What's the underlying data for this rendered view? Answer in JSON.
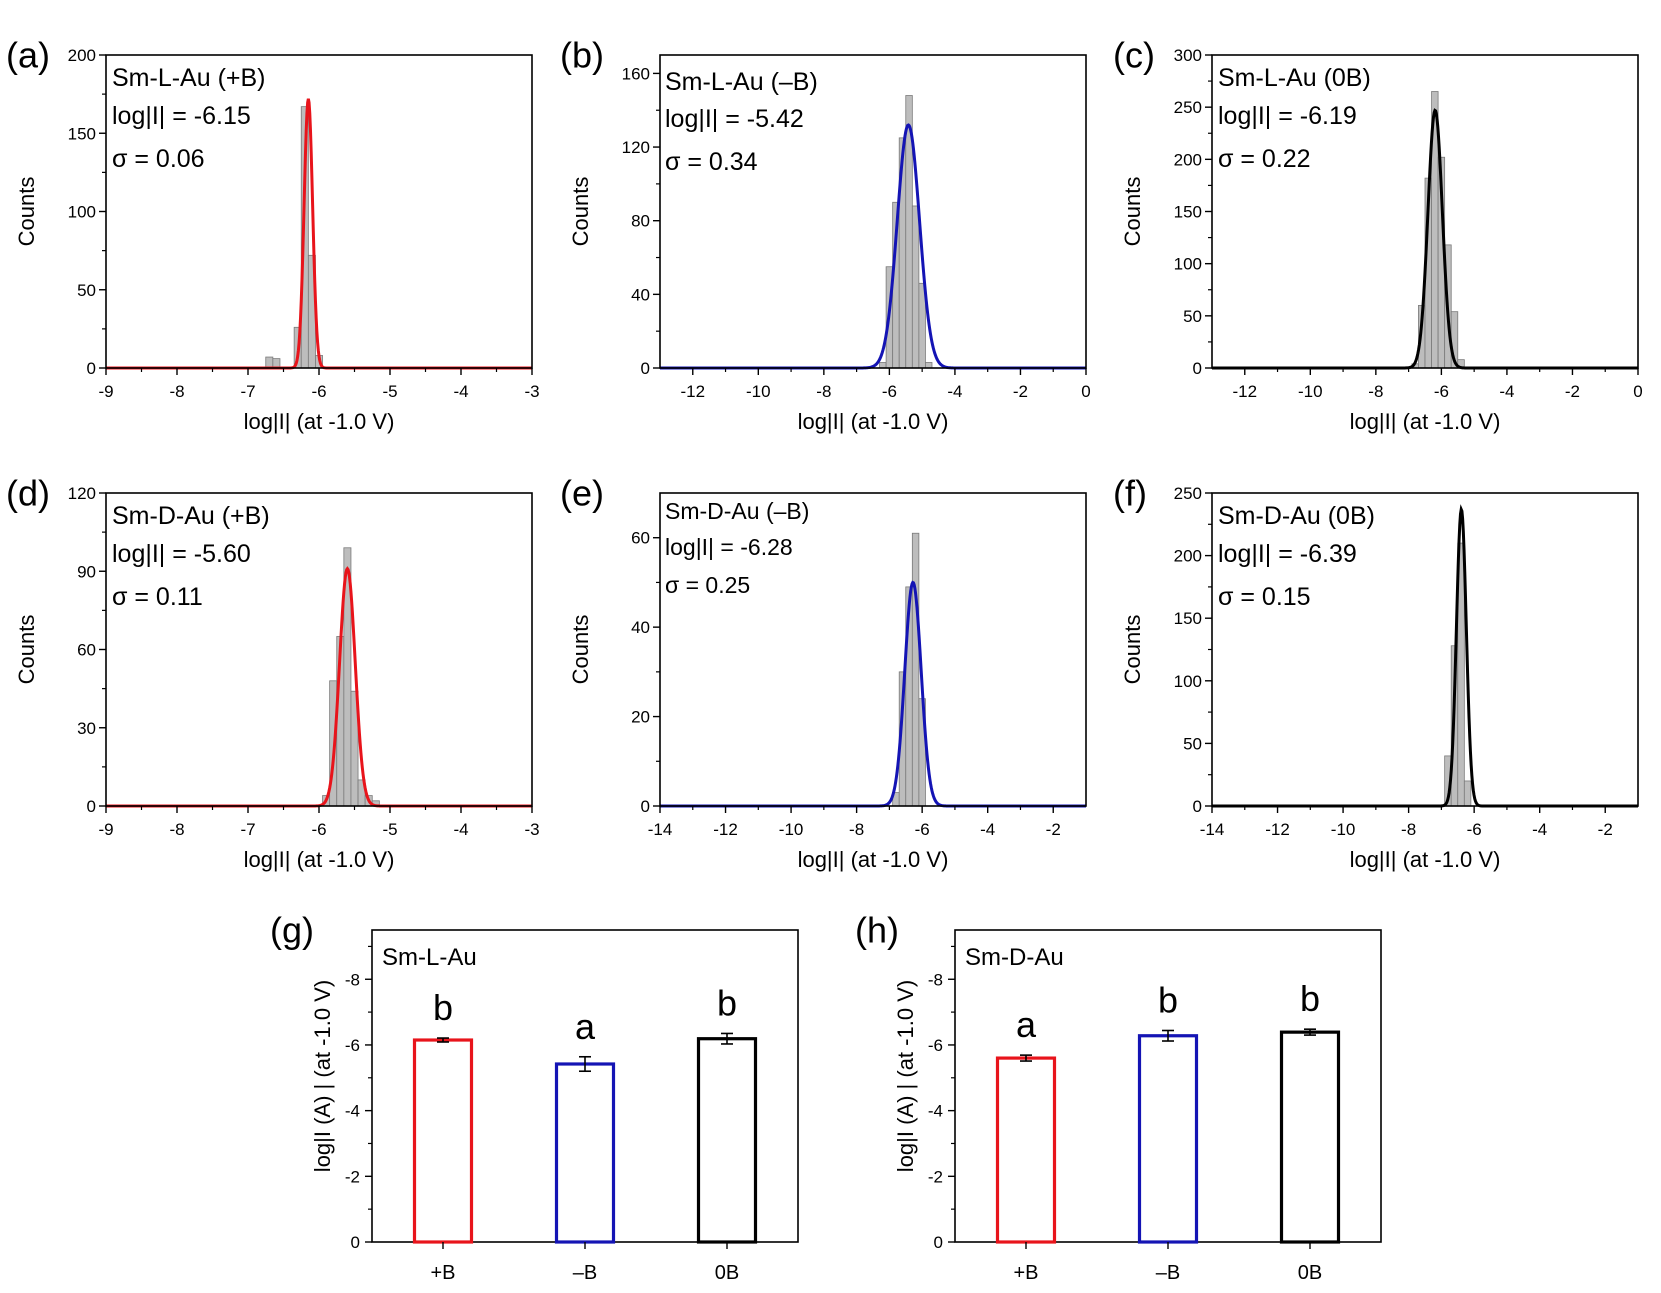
{
  "chart_data": [
    {
      "id": "a",
      "type": "histogram",
      "panel_label": "(a)",
      "xlabel": "log|I| (at -1.0 V)",
      "ylabel": "Counts",
      "xlim": [
        -9,
        -3
      ],
      "ylim": [
        0,
        200
      ],
      "xticks": [
        "-9",
        "-8",
        "-7",
        "-6",
        "-5",
        "-4",
        "-3"
      ],
      "yticks": [
        "0",
        "50",
        "100",
        "150",
        "200"
      ],
      "annotations": [
        "Sm-L-Au (+B)",
        "log|I| = -6.15",
        "σ = 0.06"
      ],
      "fit": {
        "type": "gaussian",
        "mean": -6.15,
        "sigma": 0.06,
        "peak": 172,
        "color": "#e8141b"
      },
      "bin_width": 0.1,
      "bins": [
        {
          "x": -6.7,
          "count": 7
        },
        {
          "x": -6.6,
          "count": 6
        },
        {
          "x": -6.3,
          "count": 26
        },
        {
          "x": -6.2,
          "count": 167
        },
        {
          "x": -6.1,
          "count": 72
        },
        {
          "x": -6.0,
          "count": 8
        }
      ]
    },
    {
      "id": "b",
      "type": "histogram",
      "panel_label": "(b)",
      "xlabel": "log|I| (at -1.0 V)",
      "ylabel": "Counts",
      "xlim": [
        -13,
        0
      ],
      "ylim": [
        0,
        170
      ],
      "xticks": [
        "-12",
        "-10",
        "-8",
        "-6",
        "-4",
        "-2",
        "0"
      ],
      "yticks": [
        "0",
        "40",
        "80",
        "120",
        "160"
      ],
      "annotations": [
        "Sm-L-Au (–B)",
        "log|I| = -5.42",
        "σ = 0.34"
      ],
      "fit": {
        "type": "gaussian",
        "mean": -5.42,
        "sigma": 0.34,
        "peak": 132,
        "color": "#1414b4"
      },
      "bin_width": 0.2,
      "bins": [
        {
          "x": -6.2,
          "count": 3
        },
        {
          "x": -6.0,
          "count": 55
        },
        {
          "x": -5.8,
          "count": 90
        },
        {
          "x": -5.6,
          "count": 125
        },
        {
          "x": -5.4,
          "count": 148
        },
        {
          "x": -5.2,
          "count": 88
        },
        {
          "x": -5.0,
          "count": 46
        },
        {
          "x": -4.8,
          "count": 3
        }
      ]
    },
    {
      "id": "c",
      "type": "histogram",
      "panel_label": "(c)",
      "xlabel": "log|I| (at -1.0 V)",
      "ylabel": "Counts",
      "xlim": [
        -13,
        0
      ],
      "ylim": [
        0,
        300
      ],
      "xticks": [
        "-12",
        "-10",
        "-8",
        "-6",
        "-4",
        "-2",
        "0"
      ],
      "yticks": [
        "0",
        "50",
        "100",
        "150",
        "200",
        "250",
        "300"
      ],
      "annotations": [
        "Sm-L-Au (0B)",
        "log|I| = -6.19",
        "σ = 0.22"
      ],
      "fit": {
        "type": "gaussian",
        "mean": -6.19,
        "sigma": 0.22,
        "peak": 247,
        "color": "#000000"
      },
      "bin_width": 0.2,
      "bins": [
        {
          "x": -6.8,
          "count": 4
        },
        {
          "x": -6.6,
          "count": 60
        },
        {
          "x": -6.4,
          "count": 182
        },
        {
          "x": -6.2,
          "count": 265
        },
        {
          "x": -6.0,
          "count": 202
        },
        {
          "x": -5.8,
          "count": 118
        },
        {
          "x": -5.6,
          "count": 54
        },
        {
          "x": -5.4,
          "count": 8
        }
      ]
    },
    {
      "id": "d",
      "type": "histogram",
      "panel_label": "(d)",
      "xlabel": "log|I| (at -1.0 V)",
      "ylabel": "Counts",
      "xlim": [
        -9,
        -3
      ],
      "ylim": [
        0,
        120
      ],
      "xticks": [
        "-9",
        "-8",
        "-7",
        "-6",
        "-5",
        "-4",
        "-3"
      ],
      "yticks": [
        "0",
        "30",
        "60",
        "90",
        "120"
      ],
      "annotations": [
        "Sm-D-Au (+B)",
        "log|I| = -5.60",
        "σ = 0.11"
      ],
      "fit": {
        "type": "gaussian",
        "mean": -5.6,
        "sigma": 0.11,
        "peak": 91,
        "color": "#e8141b"
      },
      "bin_width": 0.1,
      "bins": [
        {
          "x": -5.9,
          "count": 4
        },
        {
          "x": -5.8,
          "count": 48
        },
        {
          "x": -5.7,
          "count": 65
        },
        {
          "x": -5.6,
          "count": 99
        },
        {
          "x": -5.5,
          "count": 44
        },
        {
          "x": -5.4,
          "count": 10
        },
        {
          "x": -5.3,
          "count": 4
        },
        {
          "x": -5.2,
          "count": 2
        }
      ]
    },
    {
      "id": "e",
      "type": "histogram",
      "panel_label": "(e)",
      "xlabel": "log|I| (at -1.0 V)",
      "ylabel": "Counts",
      "xlim": [
        -14,
        -1
      ],
      "ylim": [
        0,
        70
      ],
      "xticks": [
        "-14",
        "-12",
        "-10",
        "-8",
        "-6",
        "-4",
        "-2"
      ],
      "yticks": [
        "0",
        "20",
        "40",
        "60"
      ],
      "annotations": [
        "Sm-D-Au (–B)",
        "log|I| = -6.28",
        "σ = 0.25"
      ],
      "fit": {
        "type": "gaussian",
        "mean": -6.28,
        "sigma": 0.25,
        "peak": 50,
        "color": "#1414b4"
      },
      "bin_width": 0.2,
      "bins": [
        {
          "x": -6.8,
          "count": 3
        },
        {
          "x": -6.6,
          "count": 30
        },
        {
          "x": -6.4,
          "count": 49
        },
        {
          "x": -6.2,
          "count": 61
        },
        {
          "x": -6.0,
          "count": 24
        }
      ]
    },
    {
      "id": "f",
      "type": "histogram",
      "panel_label": "(f)",
      "xlabel": "log|I| (at -1.0 V)",
      "ylabel": "Counts",
      "xlim": [
        -14,
        -1
      ],
      "ylim": [
        0,
        250
      ],
      "xticks": [
        "-14",
        "-12",
        "-10",
        "-8",
        "-6",
        "-4",
        "-2"
      ],
      "yticks": [
        "0",
        "50",
        "100",
        "150",
        "200",
        "250"
      ],
      "annotations": [
        "Sm-D-Au (0B)",
        "log|I| = -6.39",
        "σ = 0.15"
      ],
      "fit": {
        "type": "gaussian",
        "mean": -6.39,
        "sigma": 0.15,
        "peak": 237,
        "color": "#000000"
      },
      "bin_width": 0.2,
      "bins": [
        {
          "x": -6.8,
          "count": 40
        },
        {
          "x": -6.6,
          "count": 128
        },
        {
          "x": -6.4,
          "count": 210
        },
        {
          "x": -6.2,
          "count": 20
        }
      ]
    },
    {
      "id": "g",
      "type": "bar",
      "panel_label": "(g)",
      "title_annotation": "Sm-L-Au",
      "xlabel": "",
      "ylabel": "log|I (A) | (at -1.0 V)",
      "ylim": [
        0,
        -9.5
      ],
      "yticks": [
        "0",
        "-2",
        "-4",
        "-6",
        "-8"
      ],
      "categories": [
        "+B",
        "–B",
        "0B"
      ],
      "values": [
        -6.15,
        -5.42,
        -6.19
      ],
      "errors": [
        0.06,
        0.22,
        0.16
      ],
      "letters": [
        "b",
        "a",
        "b"
      ],
      "colors": [
        "#e8141b",
        "#1414b4",
        "#000000"
      ]
    },
    {
      "id": "h",
      "type": "bar",
      "panel_label": "(h)",
      "title_annotation": "Sm-D-Au",
      "xlabel": "",
      "ylabel": "log|I (A) | (at -1.0 V)",
      "ylim": [
        0,
        -9.5
      ],
      "yticks": [
        "0",
        "-2",
        "-4",
        "-6",
        "-8"
      ],
      "categories": [
        "+B",
        "–B",
        "0B"
      ],
      "values": [
        -5.6,
        -6.28,
        -6.39
      ],
      "errors": [
        0.09,
        0.16,
        0.09
      ],
      "letters": [
        "a",
        "b",
        "b"
      ],
      "colors": [
        "#e8141b",
        "#1414b4",
        "#000000"
      ]
    }
  ]
}
